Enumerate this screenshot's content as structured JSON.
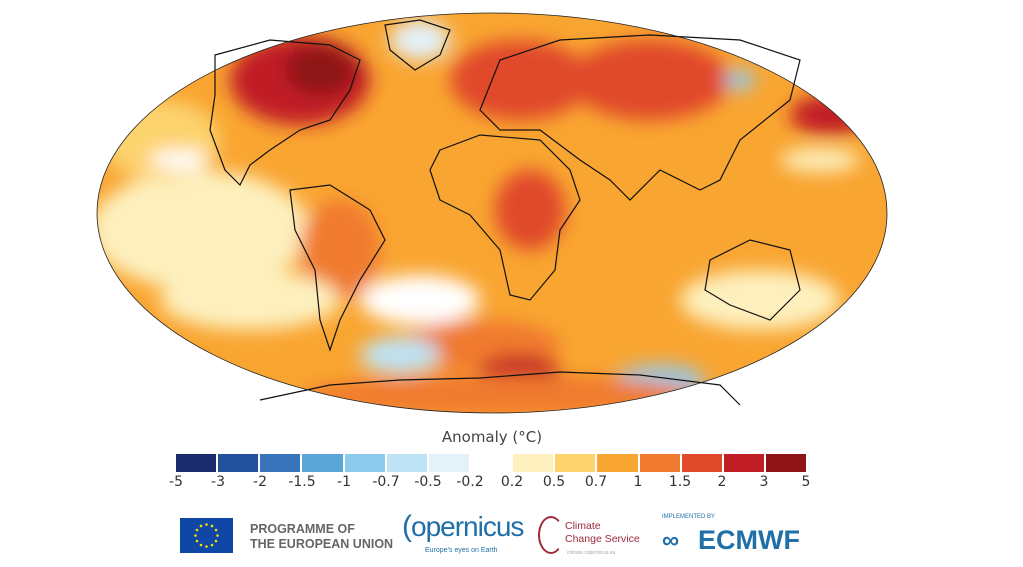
{
  "map": {
    "projection": "Robinson (world)",
    "legend_title": "Anomaly (°C)",
    "bins": [
      {
        "color": "#1a2c6b"
      },
      {
        "color": "#23509a"
      },
      {
        "color": "#3774ba"
      },
      {
        "color": "#5aa6d9"
      },
      {
        "color": "#8ccbee"
      },
      {
        "color": "#bde3f5"
      },
      {
        "color": "#e3f2f9"
      },
      {
        "color": "#ffffff"
      },
      {
        "color": "#fdf0be"
      },
      {
        "color": "#fdd36e"
      },
      {
        "color": "#f9a531"
      },
      {
        "color": "#f07a2f"
      },
      {
        "color": "#e04a2a"
      },
      {
        "color": "#c11f25"
      },
      {
        "color": "#8e1418"
      }
    ],
    "ticks": [
      "-5",
      "-3",
      "-2",
      "-1.5",
      "-1",
      "-0.7",
      "-0.5",
      "-0.2",
      "0.2",
      "0.5",
      "0.7",
      "1",
      "1.5",
      "2",
      "3",
      "5"
    ]
  },
  "footer": {
    "eu_line1": "PROGRAMME OF",
    "eu_line2": "THE EUROPEAN UNION",
    "copernicus": "opernicus",
    "copernicus_tagline": "Europe's eyes on Earth",
    "ccs_line1": "Climate",
    "ccs_line2": "Change Service",
    "ccs_url": "climate.copernicus.eu",
    "ecmwf_small": "IMPLEMENTED BY",
    "ecmwf": "ECMWF"
  }
}
